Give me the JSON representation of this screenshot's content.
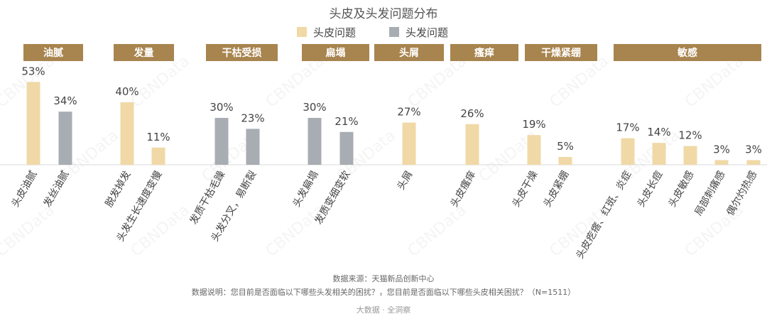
{
  "chart_data": {
    "type": "bar",
    "title": "头皮及头发问题分布",
    "legend": {
      "placement": "top-center",
      "items": [
        {
          "name": "头皮问题",
          "color": "#F0D9A6"
        },
        {
          "name": "头发问题",
          "color": "#A8ADB4"
        }
      ]
    },
    "ylim": [
      0,
      60
    ],
    "grid": false,
    "groups": [
      {
        "label": "油腻",
        "bars": [
          {
            "category": "头皮油腻",
            "value": 53,
            "label": "53%",
            "series": "头皮问题"
          },
          {
            "category": "发丝油腻",
            "value": 34,
            "label": "34%",
            "series": "头发问题"
          }
        ]
      },
      {
        "label": "发量",
        "bars": [
          {
            "category": "脱发掉发",
            "value": 40,
            "label": "40%",
            "series": "头皮问题"
          },
          {
            "category": "头发生长速度变慢",
            "value": 11,
            "label": "11%",
            "series": "头皮问题"
          }
        ]
      },
      {
        "label": "干枯受损",
        "bars": [
          {
            "category": "发质干枯毛躁",
            "value": 30,
            "label": "30%",
            "series": "头发问题"
          },
          {
            "category": "头发分叉，易断裂",
            "value": 23,
            "label": "23%",
            "series": "头发问题"
          }
        ]
      },
      {
        "label": "扁塌",
        "bars": [
          {
            "category": "头发扁塌",
            "value": 30,
            "label": "30%",
            "series": "头发问题"
          },
          {
            "category": "发质变细变软",
            "value": 21,
            "label": "21%",
            "series": "头发问题"
          }
        ]
      },
      {
        "label": "头屑",
        "bars": [
          {
            "category": "头屑",
            "value": 27,
            "label": "27%",
            "series": "头皮问题"
          }
        ]
      },
      {
        "label": "瘙痒",
        "bars": [
          {
            "category": "头皮瘙痒",
            "value": 26,
            "label": "26%",
            "series": "头皮问题"
          }
        ]
      },
      {
        "label": "干燥紧绷",
        "bars": [
          {
            "category": "头皮干燥",
            "value": 19,
            "label": "19%",
            "series": "头皮问题"
          },
          {
            "category": "头皮紧绷",
            "value": 5,
            "label": "5%",
            "series": "头皮问题"
          }
        ]
      },
      {
        "label": "敏感",
        "bars": [
          {
            "category": "头皮疙瘩、红斑、炎症",
            "value": 17,
            "label": "17%",
            "series": "头皮问题"
          },
          {
            "category": "头皮长痘",
            "value": 14,
            "label": "14%",
            "series": "头皮问题"
          },
          {
            "category": "头皮敏感",
            "value": 12,
            "label": "12%",
            "series": "头皮问题"
          },
          {
            "category": "局部刺痛感",
            "value": 3,
            "label": "3%",
            "series": "头皮问题"
          },
          {
            "category": "偶尔灼热感",
            "value": 3,
            "label": "3%",
            "series": "头皮问题"
          }
        ]
      }
    ],
    "header_color": "#A8844E",
    "header_text_color": "#FFFFFF"
  },
  "footer": {
    "source": "数据来源：天猫新品创新中心",
    "note": "数据说明：您目前是否面临以下哪些头发相关的困扰？，您目前是否面临以下哪些头皮相关困扰？（N=1511）",
    "brand": "大数据 · 全洞察"
  },
  "watermark": "CBNData"
}
